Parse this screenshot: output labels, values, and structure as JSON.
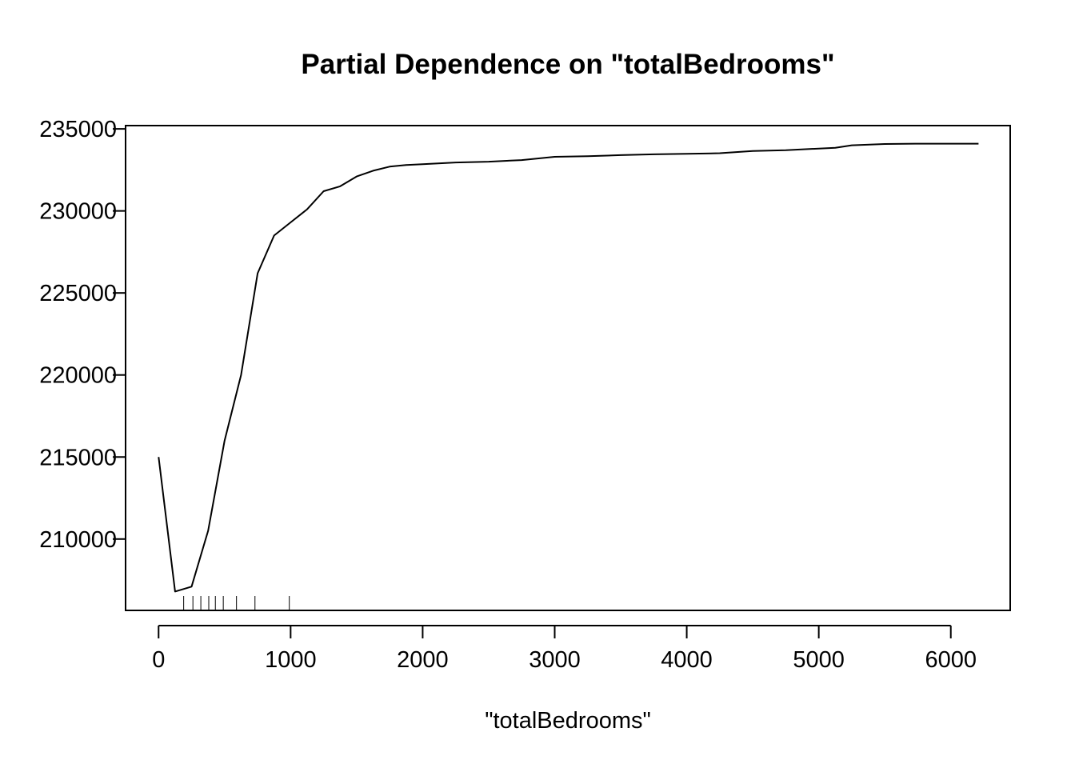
{
  "chart_data": {
    "type": "line",
    "title": "Partial Dependence on \"totalBedrooms\"",
    "xlabel": "\"totalBedrooms\"",
    "ylabel": "",
    "xlim": [
      -250,
      6450
    ],
    "ylim": [
      205650,
      235200
    ],
    "xticks": [
      0,
      1000,
      2000,
      3000,
      4000,
      5000,
      6000
    ],
    "yticks": [
      210000,
      215000,
      220000,
      225000,
      230000,
      235000
    ],
    "grid": false,
    "legend": "none",
    "series": [
      {
        "x": [
          0,
          125,
          250,
          375,
          500,
          625,
          750,
          875,
          1000,
          1125,
          1250,
          1375,
          1500,
          1625,
          1750,
          1875,
          2000,
          2250,
          2500,
          2750,
          3000,
          3250,
          3500,
          3750,
          4000,
          4250,
          4500,
          4750,
          5000,
          5125,
          5250,
          5500,
          5750,
          6000,
          6210
        ],
        "y": [
          215000,
          206800,
          207100,
          210500,
          216000,
          220000,
          226200,
          228500,
          229300,
          230100,
          231200,
          231500,
          232100,
          232450,
          232700,
          232800,
          232850,
          232950,
          233000,
          233100,
          233300,
          233330,
          233400,
          233450,
          233480,
          233520,
          233650,
          233700,
          233800,
          233850,
          234000,
          234080,
          234100,
          234100,
          234100
        ]
      }
    ],
    "rug": [
      190,
      260,
      320,
      380,
      430,
      490,
      590,
      730,
      990
    ]
  }
}
